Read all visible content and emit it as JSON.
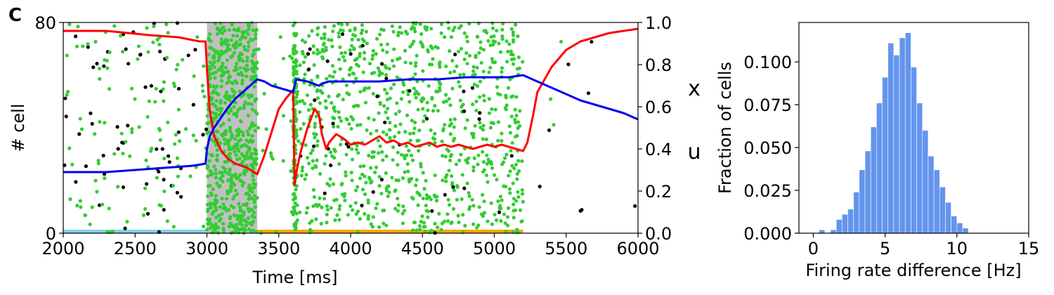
{
  "panel_label": "C",
  "chart_data": [
    {
      "type": "scatter",
      "description_role": "raster with synaptic variables",
      "xlabel": "Time [ms]",
      "ylabel": "# cell",
      "y2_label_x": "x",
      "y2_label_u": "u",
      "xlim": [
        2000,
        6000
      ],
      "ylim": [
        0,
        80
      ],
      "y2lim": [
        0,
        1
      ],
      "xticks": [
        "2000",
        "2500",
        "3000",
        "3500",
        "4000",
        "4500",
        "5000",
        "5500",
        "6000"
      ],
      "yticks": [
        "0",
        "80"
      ],
      "y2ticks": [
        "0.0",
        "0.2",
        "0.4",
        "0.6",
        "0.8",
        "1.0"
      ],
      "colors": {
        "x": "#ff0000",
        "u": "#0000ee",
        "spike_selective": "#33cc33",
        "spike_background": "#000000",
        "stim_bar": "#c0c0c0",
        "cue_bar": "#87ceeb",
        "delay_bar": "#ffa500"
      },
      "stimulus_window": [
        3000,
        3350
      ],
      "cue_interval": [
        2000,
        3000
      ],
      "delay_interval": [
        3350,
        5200
      ],
      "reactivation_time": 3610,
      "series": [
        {
          "name": "x",
          "x": [
            2000,
            2300,
            2600,
            2800,
            2950,
            2990,
            3000,
            3020,
            3050,
            3100,
            3150,
            3200,
            3280,
            3350,
            3400,
            3450,
            3500,
            3550,
            3600,
            3610,
            3620,
            3650,
            3700,
            3750,
            3780,
            3800,
            3830,
            3850,
            3900,
            3950,
            4000,
            4050,
            4100,
            4150,
            4200,
            4250,
            4300,
            4350,
            4400,
            4450,
            4500,
            4550,
            4600,
            4650,
            4700,
            4750,
            4800,
            4850,
            4900,
            4950,
            5000,
            5050,
            5100,
            5150,
            5200,
            5230,
            5270,
            5300,
            5400,
            5500,
            5600,
            5700,
            5800,
            5900,
            6000
          ],
          "y": [
            0.96,
            0.96,
            0.94,
            0.93,
            0.91,
            0.91,
            0.78,
            0.58,
            0.46,
            0.39,
            0.35,
            0.33,
            0.31,
            0.28,
            0.37,
            0.48,
            0.59,
            0.64,
            0.68,
            0.23,
            0.28,
            0.38,
            0.5,
            0.59,
            0.56,
            0.47,
            0.4,
            0.43,
            0.47,
            0.45,
            0.42,
            0.43,
            0.42,
            0.44,
            0.46,
            0.43,
            0.44,
            0.42,
            0.43,
            0.41,
            0.42,
            0.43,
            0.41,
            0.42,
            0.41,
            0.42,
            0.41,
            0.4,
            0.41,
            0.42,
            0.41,
            0.42,
            0.41,
            0.4,
            0.39,
            0.43,
            0.56,
            0.67,
            0.79,
            0.87,
            0.91,
            0.93,
            0.95,
            0.96,
            0.97
          ]
        },
        {
          "name": "u",
          "x": [
            2000,
            2300,
            2500,
            2700,
            2800,
            2900,
            2990,
            3000,
            3020,
            3050,
            3100,
            3150,
            3200,
            3250,
            3300,
            3350,
            3400,
            3450,
            3500,
            3550,
            3600,
            3610,
            3620,
            3700,
            3780,
            3800,
            3850,
            3900,
            4000,
            4200,
            4400,
            4600,
            4800,
            5000,
            5100,
            5200,
            5300,
            5400,
            5500,
            5600,
            5700,
            5800,
            5900,
            6000
          ],
          "y": [
            0.29,
            0.29,
            0.3,
            0.31,
            0.315,
            0.32,
            0.33,
            0.4,
            0.46,
            0.5,
            0.55,
            0.6,
            0.64,
            0.67,
            0.7,
            0.73,
            0.72,
            0.7,
            0.69,
            0.68,
            0.67,
            0.7,
            0.73,
            0.72,
            0.7,
            0.71,
            0.72,
            0.72,
            0.72,
            0.72,
            0.73,
            0.73,
            0.74,
            0.74,
            0.74,
            0.75,
            0.72,
            0.69,
            0.66,
            0.63,
            0.61,
            0.59,
            0.57,
            0.54
          ]
        }
      ]
    },
    {
      "type": "bar",
      "description_role": "histogram",
      "xlabel": "Firing rate difference [Hz]",
      "ylabel": "Fraction of cells",
      "xlim": [
        -1,
        15
      ],
      "ylim": [
        0,
        0.123
      ],
      "xticks": [
        "0",
        "5",
        "10",
        "15"
      ],
      "yticks": [
        "0.000",
        "0.025",
        "0.050",
        "0.075",
        "0.100"
      ],
      "bar_color": "#6495ed",
      "bin_width": 0.4,
      "bin_starts": [
        0.0,
        0.4,
        0.8,
        1.2,
        1.6,
        2.0,
        2.4,
        2.8,
        3.2,
        3.6,
        4.0,
        4.4,
        4.8,
        5.2,
        5.6,
        6.0,
        6.4,
        6.8,
        7.2,
        7.6,
        8.0,
        8.4,
        8.8,
        9.2,
        9.6,
        10.0,
        10.4,
        10.8
      ],
      "values": [
        0.0,
        0.002,
        0.0,
        0.002,
        0.008,
        0.011,
        0.014,
        0.024,
        0.037,
        0.048,
        0.062,
        0.076,
        0.091,
        0.111,
        0.104,
        0.114,
        0.117,
        0.097,
        0.076,
        0.06,
        0.045,
        0.037,
        0.027,
        0.018,
        0.01,
        0.006,
        0.003,
        0.0
      ]
    }
  ]
}
